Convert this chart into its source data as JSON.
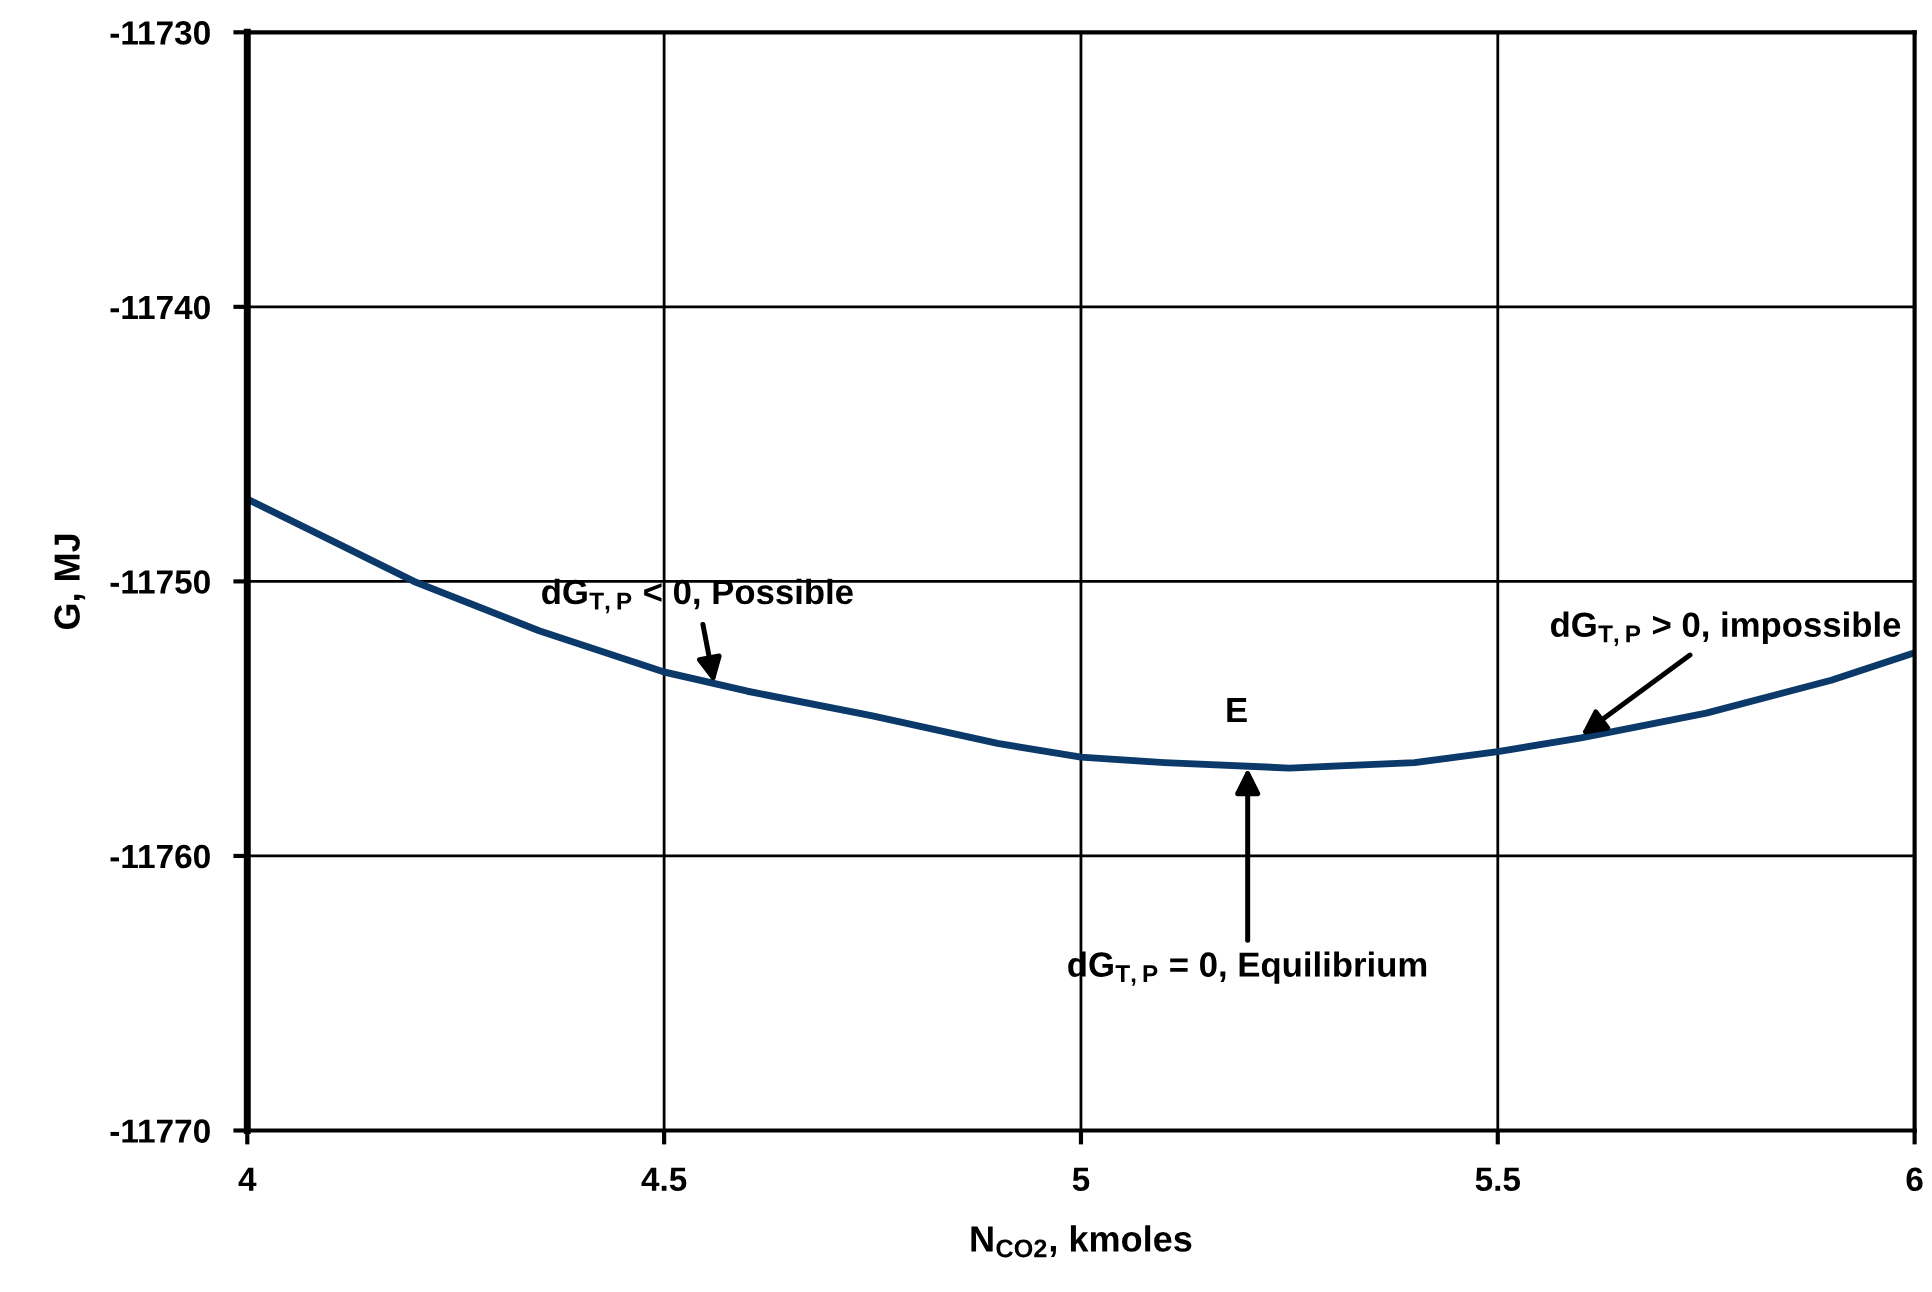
{
  "chart_data": {
    "type": "line",
    "xlabel": "N$_{CO2}$, kmoles",
    "ylabel": "G, MJ",
    "x": [
      4,
      4.1,
      4.2,
      4.35,
      4.5,
      4.6,
      4.75,
      4.9,
      5,
      5.1,
      5.25,
      5.4,
      5.5,
      5.6,
      5.75,
      5.9,
      6
    ],
    "series": [
      {
        "color": "#0b3a6a",
        "values": [
          -11747.0,
          -11748.5,
          -11750.0,
          -11751.8,
          -11753.3,
          -11754.0,
          -11754.9,
          -11755.9,
          -11756.4,
          -11756.6,
          -11756.8,
          -11756.6,
          -11756.2,
          -11755.7,
          -11754.8,
          -11753.6,
          -11752.6
        ]
      }
    ],
    "xlim": [
      4,
      6
    ],
    "xticks": [
      4,
      4.5,
      5,
      5.5,
      6
    ],
    "ylim": [
      -11770,
      -11730
    ],
    "yticks": [
      -11770,
      -11760,
      -11750,
      -11740,
      -11730
    ],
    "grid": true,
    "line_style": "solid",
    "annotations": [
      {
        "text": "dG$_{T,P}$ < 0, Possible",
        "x": 4.56,
        "y": -11753.7
      },
      {
        "text": "E",
        "x": 5.2,
        "y": -11756.8
      },
      {
        "text": "dG$_{T,P}$ = 0, Equilibrium",
        "x": 5.2,
        "y": -11756.8
      },
      {
        "text": "dG$_{T,P}$ > 0, impossible",
        "x": 5.6,
        "y": -11755.6
      }
    ]
  }
}
